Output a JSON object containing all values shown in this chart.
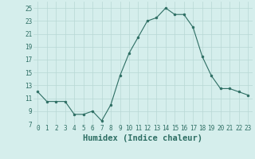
{
  "x": [
    0,
    1,
    2,
    3,
    4,
    5,
    6,
    7,
    8,
    9,
    10,
    11,
    12,
    13,
    14,
    15,
    16,
    17,
    18,
    19,
    20,
    21,
    22,
    23
  ],
  "y": [
    12,
    10.5,
    10.5,
    10.5,
    8.5,
    8.5,
    9,
    7.5,
    10,
    14.5,
    18,
    20.5,
    23,
    23.5,
    25,
    24,
    24,
    22,
    17.5,
    14.5,
    12.5,
    12.5,
    12,
    11.5
  ],
  "line_color": "#2d6e63",
  "marker_color": "#2d6e63",
  "bg_color": "#d5eeec",
  "grid_color": "#b8d8d4",
  "xlabel": "Humidex (Indice chaleur)",
  "ylim": [
    7,
    26
  ],
  "xlim": [
    -0.5,
    23.5
  ],
  "yticks": [
    7,
    9,
    11,
    13,
    15,
    17,
    19,
    21,
    23,
    25
  ],
  "xtick_labels": [
    "0",
    "1",
    "2",
    "3",
    "4",
    "5",
    "6",
    "7",
    "8",
    "9",
    "10",
    "11",
    "12",
    "13",
    "14",
    "15",
    "16",
    "17",
    "18",
    "19",
    "20",
    "21",
    "22",
    "23"
  ],
  "tick_fontsize": 5.5,
  "xlabel_fontsize": 7.5,
  "label_color": "#2d6e63"
}
